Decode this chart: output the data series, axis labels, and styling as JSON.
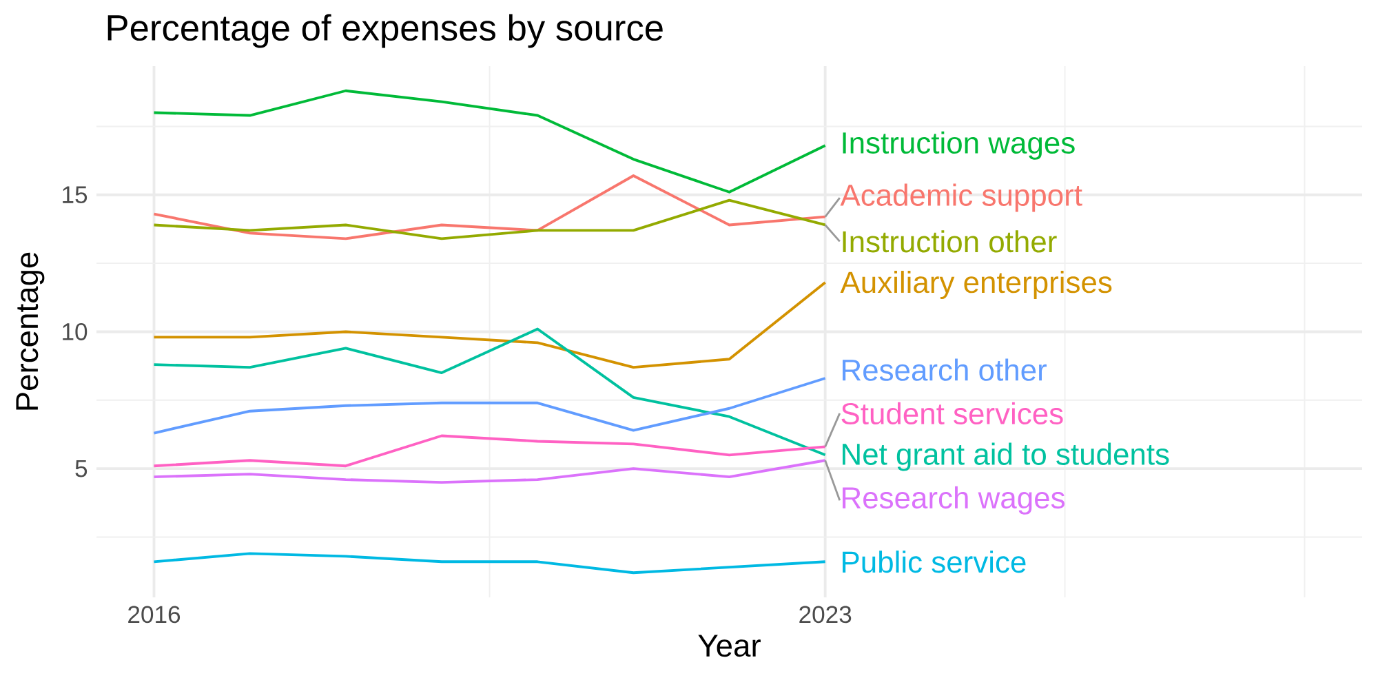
{
  "chart_data": {
    "type": "line",
    "title": "Percentage of expenses by source",
    "xlabel": "Year",
    "ylabel": "Percentage",
    "x": [
      2016,
      2017,
      2018,
      2019,
      2020,
      2021,
      2022,
      2023
    ],
    "xlim": [
      2015.4,
      2028.6
    ],
    "ylim": [
      0.3,
      19.7
    ],
    "xticks": [
      2016,
      {
        "value": 2019.5,
        "label": null
      },
      2023,
      {
        "value": 2025.5,
        "label": null
      },
      {
        "value": 2028,
        "label": null
      }
    ],
    "yticks": [
      {
        "value": 2.5,
        "label": null
      },
      5,
      {
        "value": 7.5,
        "label": null
      },
      10,
      {
        "value": 12.5,
        "label": null
      },
      15,
      {
        "value": 17.5,
        "label": null
      }
    ],
    "grid": true,
    "line_style": "solid",
    "marker": "none",
    "series": [
      {
        "name": "Academic support",
        "color": "#F8766D",
        "values": [
          14.3,
          13.6,
          13.4,
          13.9,
          13.7,
          15.7,
          13.9,
          14.2
        ]
      },
      {
        "name": "Auxiliary enterprises",
        "color": "#D39200",
        "values": [
          9.8,
          9.8,
          10.0,
          9.8,
          9.6,
          8.7,
          9.0,
          11.8
        ]
      },
      {
        "name": "Instruction other",
        "color": "#93AA00",
        "values": [
          13.9,
          13.7,
          13.9,
          13.4,
          13.7,
          13.7,
          14.8,
          13.9
        ]
      },
      {
        "name": "Instruction wages",
        "color": "#00BA38",
        "values": [
          18.0,
          17.9,
          18.8,
          18.4,
          17.9,
          16.3,
          15.1,
          16.8
        ]
      },
      {
        "name": "Net grant aid to students",
        "color": "#00C19F",
        "values": [
          8.8,
          8.7,
          9.4,
          8.5,
          10.1,
          7.6,
          6.9,
          5.5
        ]
      },
      {
        "name": "Public service",
        "color": "#00B9E3",
        "values": [
          1.6,
          1.9,
          1.8,
          1.6,
          1.6,
          1.2,
          1.4,
          1.6
        ]
      },
      {
        "name": "Research other",
        "color": "#619CFF",
        "values": [
          6.3,
          7.1,
          7.3,
          7.4,
          7.4,
          6.4,
          7.2,
          8.3
        ]
      },
      {
        "name": "Research wages",
        "color": "#DB72FB",
        "values": [
          4.7,
          4.8,
          4.6,
          4.5,
          4.6,
          5.0,
          4.7,
          5.3
        ]
      },
      {
        "name": "Student services",
        "color": "#FF61C3",
        "values": [
          5.1,
          5.3,
          5.1,
          6.2,
          6.0,
          5.9,
          5.5,
          5.8
        ]
      }
    ]
  }
}
